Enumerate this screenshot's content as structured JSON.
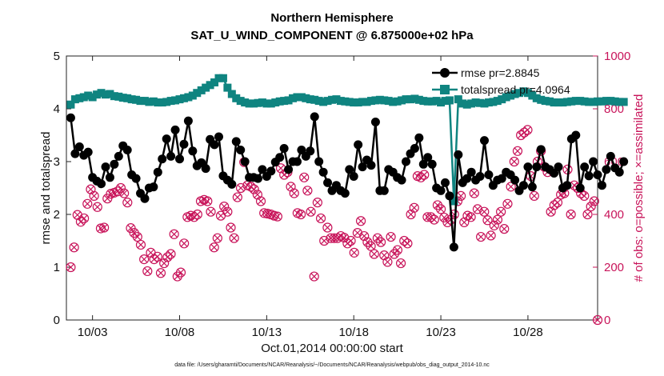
{
  "chart_data": {
    "type": "line",
    "title": "Northern Hemisphere",
    "subtitle": "SAT_U_WIND_COMPONENT @ 6.875000e+02 hPa",
    "xlabel": "Oct.01,2014 00:00:00 start",
    "ylabel": "rmse and totalspread",
    "ylabel_right": "# of obs: o=possible; ×=assimilated",
    "footnote": "data file: /Users/gharamti/Documents/NCAR/Reanalysis/~/Documents/NCAR/Reanalysis/webpub/obs_diag_output_2014-10.nc",
    "xlim": [
      1.5,
      32.0
    ],
    "ylim": [
      0,
      5
    ],
    "ylim_right": [
      0,
      1000
    ],
    "x_ticks": [
      3,
      8,
      13,
      18,
      23,
      28
    ],
    "x_tick_labels": [
      "10/03",
      "10/08",
      "10/13",
      "10/18",
      "10/23",
      "10/28"
    ],
    "y_ticks": [
      0,
      1,
      2,
      3,
      4,
      5
    ],
    "y_ticks_right": [
      0,
      200,
      400,
      600,
      800,
      1000
    ],
    "colors": {
      "rmse": "#000000",
      "spread": "#0f8480",
      "obs": "#c8145a"
    },
    "x_start": 1.75,
    "x_step": 0.25,
    "series": [
      {
        "name": "rmse pr=2.8845",
        "axis": "left",
        "values": [
          3.83,
          3.15,
          3.28,
          3.12,
          3.18,
          2.7,
          2.63,
          2.58,
          2.9,
          2.7,
          2.95,
          3.1,
          3.3,
          3.22,
          2.75,
          2.68,
          2.4,
          2.3,
          2.5,
          2.52,
          2.8,
          3.05,
          3.43,
          3.1,
          3.6,
          3.05,
          3.33,
          3.77,
          3.2,
          2.92,
          2.98,
          2.87,
          3.42,
          3.32,
          3.47,
          2.73,
          2.65,
          2.57,
          3.38,
          3.22,
          3.0,
          2.7,
          2.7,
          2.68,
          2.85,
          2.72,
          2.82,
          2.99,
          3.08,
          3.25,
          2.85,
          3.0,
          3.0,
          3.22,
          3.1,
          3.2,
          3.85,
          3.0,
          2.8,
          2.6,
          2.45,
          2.55,
          2.45,
          2.4,
          2.85,
          2.72,
          3.32,
          2.9,
          3.03,
          2.93,
          3.75,
          2.45,
          2.45,
          2.85,
          2.8,
          2.7,
          2.65,
          3.0,
          3.15,
          3.25,
          3.45,
          2.95,
          3.08,
          2.95,
          2.5,
          2.45,
          2.6,
          2.35,
          1.38,
          3.13,
          2.6,
          2.68,
          2.8,
          2.65,
          2.72,
          3.4,
          2.75,
          2.55,
          2.65,
          2.68,
          2.8,
          2.75,
          2.65,
          2.45,
          2.55,
          2.9,
          2.52,
          2.9,
          3.23,
          2.9,
          2.85,
          2.78,
          2.9,
          2.5,
          2.55,
          3.43,
          3.5,
          2.5,
          2.9,
          2.73,
          3.0,
          2.75,
          2.55,
          2.85,
          3.1,
          2.88,
          2.8,
          3.0
        ]
      },
      {
        "name": "totalspread pr=4.0964",
        "axis": "left",
        "values": [
          4.08,
          4.18,
          4.2,
          4.22,
          4.25,
          4.22,
          4.27,
          4.3,
          4.27,
          4.28,
          4.24,
          4.23,
          4.21,
          4.2,
          4.18,
          4.17,
          4.15,
          4.15,
          4.13,
          4.14,
          4.12,
          4.12,
          4.13,
          4.15,
          4.16,
          4.18,
          4.2,
          4.22,
          4.25,
          4.3,
          4.35,
          4.4,
          4.45,
          4.5,
          4.58,
          4.58,
          4.4,
          4.28,
          4.2,
          4.15,
          4.12,
          4.1,
          4.1,
          4.11,
          4.12,
          4.1,
          4.1,
          4.12,
          4.14,
          4.15,
          4.16,
          4.2,
          4.22,
          4.22,
          4.2,
          4.18,
          4.17,
          4.15,
          4.13,
          4.15,
          4.17,
          4.18,
          4.15,
          4.14,
          4.13,
          4.12,
          4.12,
          4.13,
          4.13,
          4.15,
          4.16,
          4.17,
          4.16,
          4.15,
          4.13,
          4.14,
          4.16,
          4.18,
          4.18,
          4.19,
          4.17,
          4.15,
          4.14,
          4.14,
          4.15,
          4.12,
          4.15,
          4.16,
          2.25,
          4.18,
          4.1,
          4.08,
          4.1,
          4.12,
          4.11,
          4.1,
          4.12,
          4.13,
          4.15,
          4.18,
          4.22,
          4.25,
          4.28,
          4.3,
          4.33,
          4.3,
          4.25,
          4.2,
          4.17,
          4.15,
          4.14,
          4.12,
          4.12,
          4.12,
          4.13,
          4.14,
          4.15,
          4.15,
          4.14,
          4.13,
          4.13,
          4.14,
          4.14,
          4.15,
          4.15,
          4.14,
          4.13,
          4.13
        ]
      },
      {
        "name": "obs possible / assimilated",
        "axis": "right",
        "values": [
          200,
          275,
          398,
          372,
          385,
          440,
          495,
          470,
          428,
          347,
          350,
          460,
          478,
          482,
          487,
          500,
          480,
          445,
          348,
          330,
          315,
          285,
          230,
          185,
          255,
          230,
          240,
          178,
          215,
          238,
          250,
          325,
          165,
          180,
          290,
          390,
          395,
          390,
          400,
          450,
          455,
          450,
          410,
          275,
          310,
          395,
          430,
          410,
          350,
          310,
          465,
          500,
          598,
          510,
          505,
          495,
          475,
          450,
          405,
          403,
          400,
          395,
          392,
          575,
          550,
          560,
          505,
          480,
          405,
          400,
          540,
          490,
          410,
          165,
          445,
          385,
          300,
          350,
          310,
          310,
          310,
          318,
          312,
          290,
          300,
          255,
          330,
          375,
          318,
          295,
          280,
          250,
          310,
          295,
          245,
          220,
          315,
          250,
          265,
          215,
          300,
          290,
          400,
          425,
          545,
          540,
          550,
          390,
          390,
          380,
          435,
          420,
          388,
          370,
          380,
          400,
          450,
          470,
          370,
          395,
          390,
          480,
          420,
          315,
          410,
          378,
          320,
          358,
          380,
          410,
          345,
          440,
          505,
          600,
          640,
          700,
          710,
          720,
          545,
          470,
          600,
          640,
          580,
          560,
          410,
          435,
          445,
          475,
          480,
          570,
          400,
          510,
          500,
          480,
          470,
          400,
          430,
          450,
          0
        ]
      }
    ],
    "legend": {
      "position": "top-right",
      "entries": [
        "rmse pr=2.8845",
        "totalspread pr=4.0964"
      ]
    }
  }
}
